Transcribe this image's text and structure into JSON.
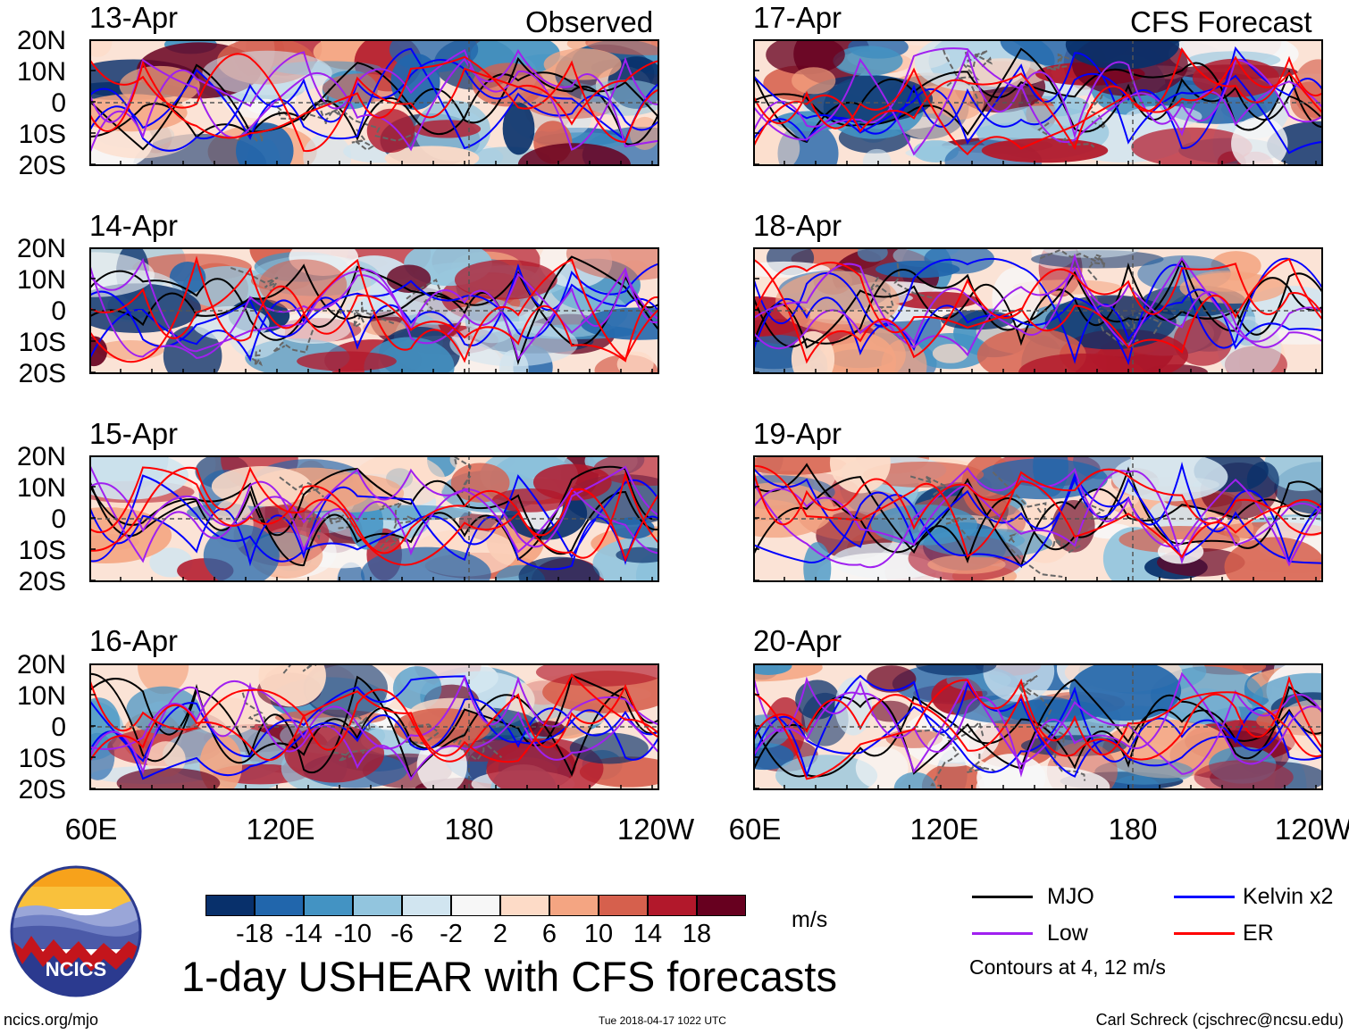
{
  "headers": {
    "observed": "Observed",
    "forecast": "CFS Forecast"
  },
  "panels": [
    {
      "date": "13-Apr",
      "seed": 11
    },
    {
      "date": "14-Apr",
      "seed": 23
    },
    {
      "date": "15-Apr",
      "seed": 37
    },
    {
      "date": "16-Apr",
      "seed": 41
    },
    {
      "date": "17-Apr",
      "seed": 53
    },
    {
      "date": "18-Apr",
      "seed": 67
    },
    {
      "date": "19-Apr",
      "seed": 71
    },
    {
      "date": "20-Apr",
      "seed": 89
    }
  ],
  "lat_labels": [
    "20N",
    "10N",
    "0",
    "10S",
    "20S"
  ],
  "lon_labels": [
    "60E",
    "120E",
    "180",
    "120W"
  ],
  "colorbar": {
    "colors": [
      "#08306b",
      "#2166ac",
      "#4393c3",
      "#92c5de",
      "#d1e5f0",
      "#f7f7f7",
      "#fddbc7",
      "#f4a582",
      "#d6604d",
      "#b2182b",
      "#67001f"
    ],
    "ticks": [
      "-18",
      "-14",
      "-10",
      "-6",
      "-2",
      "2",
      "6",
      "10",
      "14",
      "18"
    ],
    "units": "m/s"
  },
  "title": "1-day USHEAR with CFS forecasts",
  "legend": {
    "items": [
      {
        "label": "MJO",
        "color": "#000000"
      },
      {
        "label": "Kelvin x2",
        "color": "#0000ff"
      },
      {
        "label": "Low",
        "color": "#a020f0"
      },
      {
        "label": "ER",
        "color": "#ff0000"
      }
    ],
    "note": "Contours at 4, 12 m/s"
  },
  "logo": {
    "text": "NCICS"
  },
  "footer": {
    "website": "ncics.org/mjo",
    "timestamp": "Tue 2018-04-17 1022 UTC",
    "credit": "Carl Schreck (cjschrec@ncsu.edu)"
  }
}
